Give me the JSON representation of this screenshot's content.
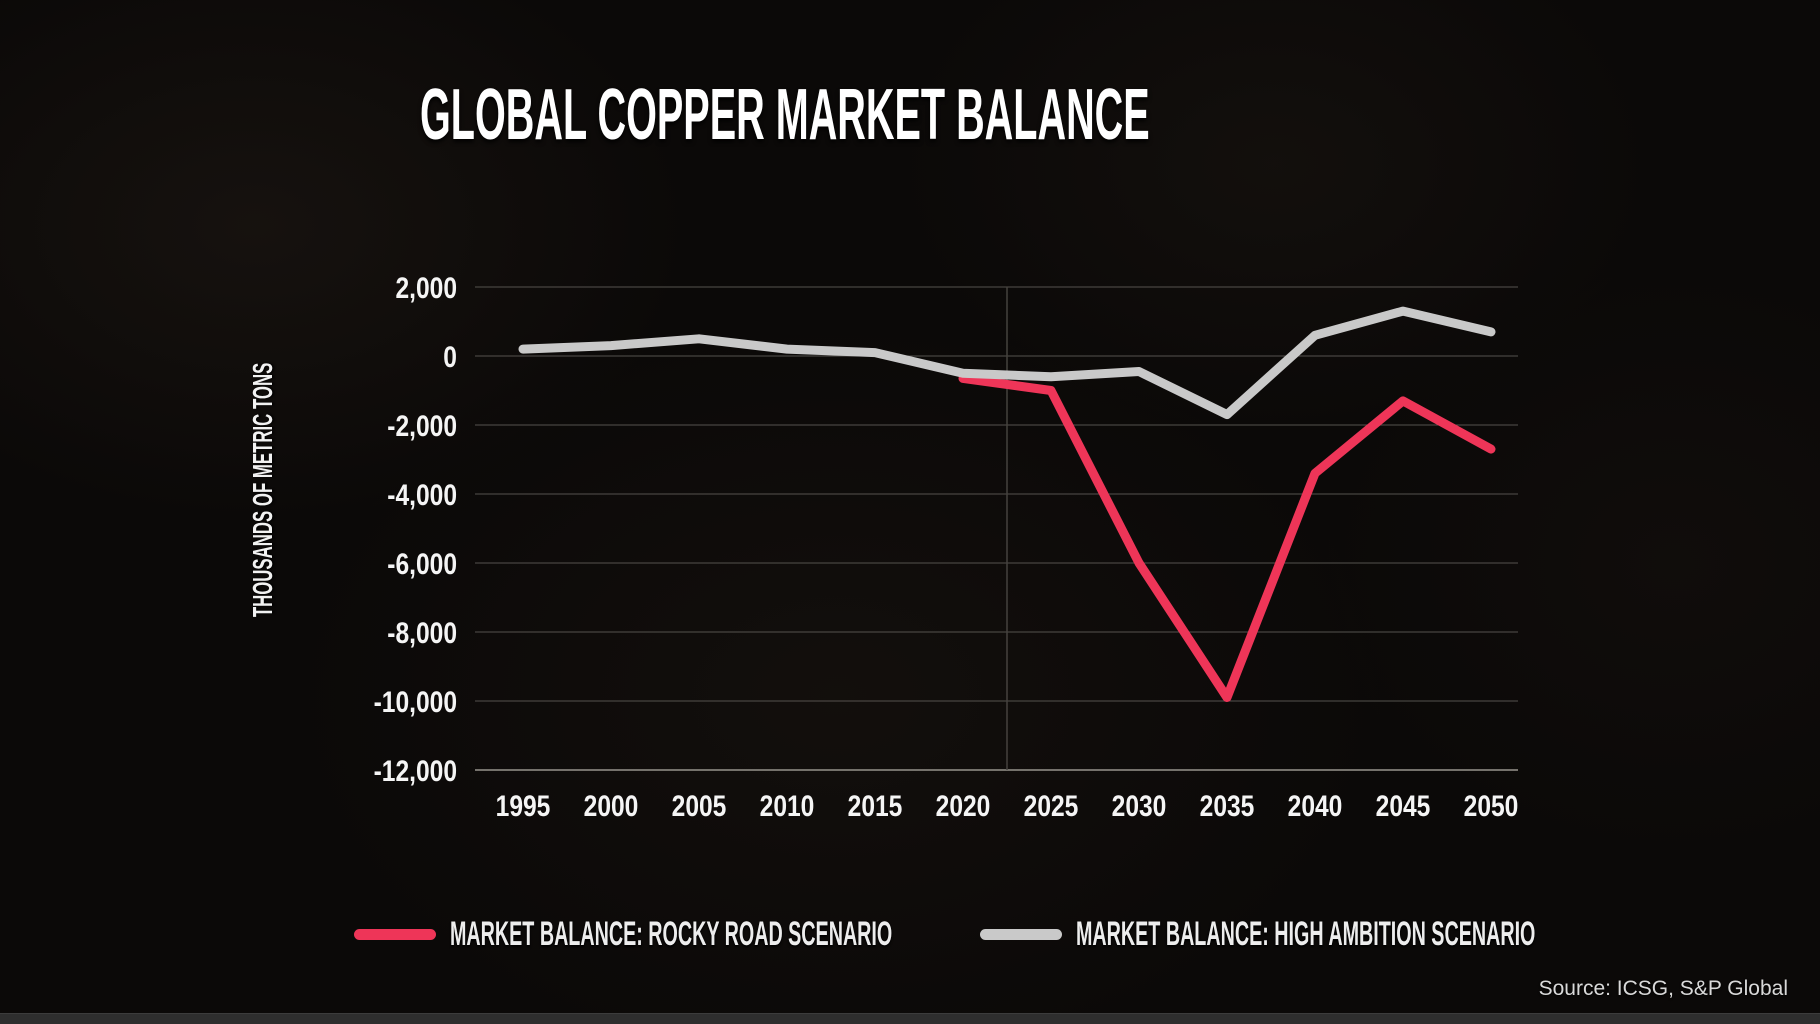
{
  "title": "GLOBAL COPPER MARKET BALANCE",
  "source": "Source: ICSG, S&P Global",
  "legend": [
    {
      "label": "MARKET BALANCE: ROCKY ROAD SCENARIO",
      "color": "#ee3558"
    },
    {
      "label": "MARKET BALANCE: HIGH AMBITION SCENARIO",
      "color": "#c9c9c9"
    }
  ],
  "colors": {
    "rocky_road_red": "#ee3558",
    "high_ambition_gray": "#c9c9c9",
    "gridline": "#55524e",
    "axis_line": "#75726c",
    "forecast_divider": "#45423e",
    "tick_text": "#f5f5f5"
  },
  "chart_data": {
    "type": "line",
    "title": "GLOBAL COPPER MARKET BALANCE",
    "xlabel": "",
    "ylabel": "THOUSANDS OF METRIC TONS",
    "ylim": [
      -12000,
      2000
    ],
    "ytick_step": 2000,
    "grid": true,
    "legend_position": "bottom",
    "forecast_divider_year": 2022.5,
    "yticks": [
      {
        "value": 2000,
        "label": "2,000"
      },
      {
        "value": 0,
        "label": "0"
      },
      {
        "value": -2000,
        "label": "-2,000"
      },
      {
        "value": -4000,
        "label": "-4,000"
      },
      {
        "value": -6000,
        "label": "-6,000"
      },
      {
        "value": -8000,
        "label": "-8,000"
      },
      {
        "value": -10000,
        "label": "-10,000"
      },
      {
        "value": -12000,
        "label": "-12,000"
      }
    ],
    "xticks": [
      {
        "value": 1995,
        "label": "1995"
      },
      {
        "value": 2000,
        "label": "2000"
      },
      {
        "value": 2005,
        "label": "2005"
      },
      {
        "value": 2010,
        "label": "2010"
      },
      {
        "value": 2015,
        "label": "2015"
      },
      {
        "value": 2020,
        "label": "2020"
      },
      {
        "value": 2025,
        "label": "2025"
      },
      {
        "value": 2030,
        "label": "2030"
      },
      {
        "value": 2035,
        "label": "2035"
      },
      {
        "value": 2040,
        "label": "2040"
      },
      {
        "value": 2045,
        "label": "2045"
      },
      {
        "value": 2050,
        "label": "2050"
      }
    ],
    "series": [
      {
        "name": "Market Balance: Rocky Road Scenario",
        "color": "#ee3558",
        "points": [
          [
            2020,
            -650
          ],
          [
            2025,
            -1000
          ],
          [
            2030,
            -6000
          ],
          [
            2035,
            -9900
          ],
          [
            2040,
            -3400
          ],
          [
            2045,
            -1300
          ],
          [
            2050,
            -2700
          ]
        ]
      },
      {
        "name": "Market Balance: High Ambition Scenario",
        "color": "#c9c9c9",
        "points": [
          [
            1995,
            200
          ],
          [
            2000,
            300
          ],
          [
            2005,
            500
          ],
          [
            2010,
            200
          ],
          [
            2015,
            100
          ],
          [
            2020,
            -500
          ],
          [
            2025,
            -600
          ],
          [
            2030,
            -450
          ],
          [
            2035,
            -1700
          ],
          [
            2040,
            600
          ],
          [
            2045,
            1300
          ],
          [
            2050,
            700
          ]
        ]
      }
    ]
  }
}
